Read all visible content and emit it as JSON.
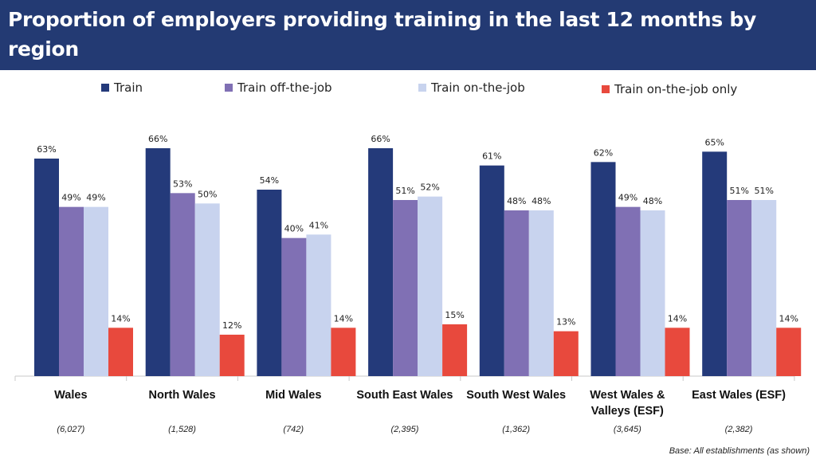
{
  "title": "Proportion of employers providing training in the last 12 months by region",
  "footnote": "Base: All establishments (as shown)",
  "colors": {
    "title_bg": "#233a73",
    "Train": "#243a7a",
    "Train off-the-job": "#8070b4",
    "Train on-the-job": "#c8d3ee",
    "Train on-the-job only": "#e8493d"
  },
  "chart_data": {
    "type": "bar",
    "title": "Proportion of employers providing training in the last 12 months by region",
    "xlabel": "",
    "ylabel": "",
    "ylim": [
      0,
      70
    ],
    "grid": false,
    "legend": "top",
    "value_suffix": "%",
    "categories": [
      "Wales",
      "North Wales",
      "Mid Wales",
      "South East Wales",
      "South West Wales",
      "West Wales & Valleys (ESF)",
      "East Wales (ESF)"
    ],
    "category_bases": [
      "(6,027)",
      "(1,528)",
      "(742)",
      "(2,395)",
      "(1,362)",
      "(3,645)",
      "(2,382)"
    ],
    "series": [
      {
        "name": "Train",
        "values": [
          63,
          66,
          54,
          66,
          61,
          62,
          65
        ]
      },
      {
        "name": "Train off-the-job",
        "values": [
          49,
          53,
          40,
          51,
          48,
          49,
          51
        ]
      },
      {
        "name": "Train on-the-job",
        "values": [
          49,
          50,
          41,
          52,
          48,
          48,
          51
        ]
      },
      {
        "name": "Train on-the-job only",
        "values": [
          14,
          12,
          14,
          15,
          13,
          14,
          14
        ]
      }
    ]
  }
}
